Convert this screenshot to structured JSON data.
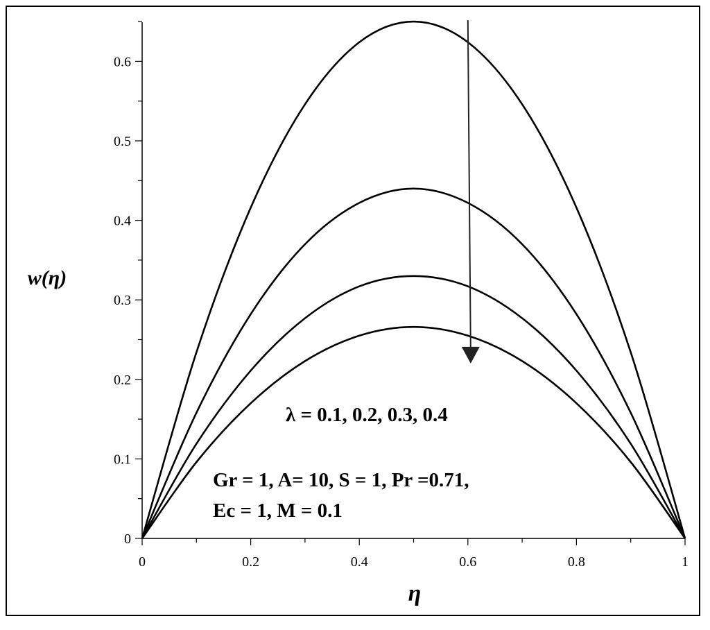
{
  "chart_data": {
    "type": "line",
    "title": "",
    "xlabel": "η",
    "ylabel": "w(η)",
    "xlim": [
      0,
      1
    ],
    "ylim": [
      0,
      0.65
    ],
    "x_ticks": [
      "0",
      "0.2",
      "0.4",
      "0.6",
      "0.8",
      "1"
    ],
    "y_ticks": [
      "0",
      "0.1",
      "0.2",
      "0.3",
      "0.4",
      "0.5",
      "0.6"
    ],
    "grid": false,
    "x": [
      0,
      0.1,
      0.2,
      0.3,
      0.4,
      0.5,
      0.6,
      0.7,
      0.8,
      0.9,
      1.0
    ],
    "series": [
      {
        "values": [
          0,
          0.234,
          0.416,
          0.546,
          0.624,
          0.65,
          0.624,
          0.546,
          0.416,
          0.234,
          0
        ]
      },
      {
        "values": [
          0,
          0.158,
          0.282,
          0.37,
          0.422,
          0.44,
          0.422,
          0.37,
          0.282,
          0.158,
          0
        ]
      },
      {
        "values": [
          0,
          0.119,
          0.211,
          0.277,
          0.317,
          0.33,
          0.317,
          0.277,
          0.211,
          0.119,
          0
        ]
      },
      {
        "values": [
          0,
          0.096,
          0.17,
          0.223,
          0.255,
          0.266,
          0.255,
          0.223,
          0.17,
          0.096,
          0
        ]
      }
    ],
    "arrow": {
      "x": 0.6,
      "from_y": 0.65,
      "to_y": 0.22,
      "direction": "down"
    },
    "annotations": [
      "λ = 0.1, 0.2, 0.3, 0.4",
      "Gr = 1, A= 10, S = 1, Pr =0.71,",
      "Ec = 1, M = 0.1"
    ],
    "colors": {
      "line": "#000000",
      "arrow": "#222222"
    }
  }
}
